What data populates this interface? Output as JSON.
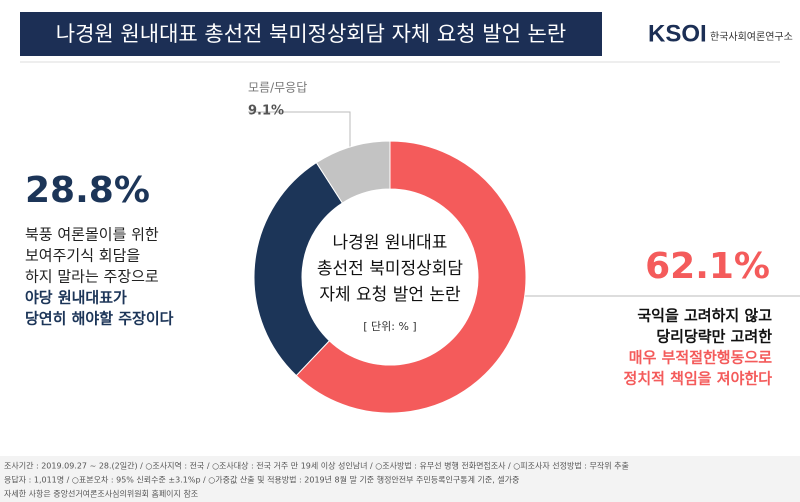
{
  "chart_data": {
    "type": "donut",
    "title": "나경원 원내대표 총선전 북미정상회담 자체 요청 발언 논란",
    "logo": "KSOI",
    "logo_subtitle": "한국사회여론연구소",
    "center_text": [
      "나경원 원내대표",
      "총선전 북미정상회담",
      "자체 요청 발언 논란"
    ],
    "unit_note": "[ 단위: % ]",
    "categories": [
      null,
      null,
      "모름/무응답"
    ],
    "values": [
      62.1,
      28.8,
      9.1
    ],
    "value_labels": [
      "62.1%",
      "28.8%",
      "9.1%"
    ],
    "colors": [
      "#f45b5b",
      "#1c3558",
      "#c3c3c3"
    ],
    "descriptions": [
      {
        "plain": [
          "국익을 고려하지 않고",
          "당리당략만 고려한"
        ],
        "emphasis": [
          "매우 부적절한행동으로",
          "정치적 책임을 져야한다"
        ]
      },
      {
        "plain": [
          "북풍 여론몰이를 위한",
          "보여주기식 회담을",
          "하지 말라는 주장으로"
        ],
        "emphasis": [
          "야당 원내대표가",
          "당연히 해야할 주장이다"
        ]
      }
    ],
    "footer": [
      "조사기간 : 2019.09.27 ~ 28.(2일간) / ○조사지역 : 전국 / ○조사대상 : 전국 거주 만 19세 이상 성인남녀 / ○조사방법 : 유무선 병행 전화면접조사 / ○피조사자 선정방법 : 무작위 추출",
      "응답자 : 1,011명 / ○표본오차 : 95% 신뢰수준 ±3.1%p / ○가중값 산출 및 적용방법 : 2019년 8월 말 기준 행정안전부 주민등록인구통계 기준, 셀가중",
      "자세한 사항은 중앙선거여론조사심의위원회 홈페이지 참조"
    ]
  }
}
